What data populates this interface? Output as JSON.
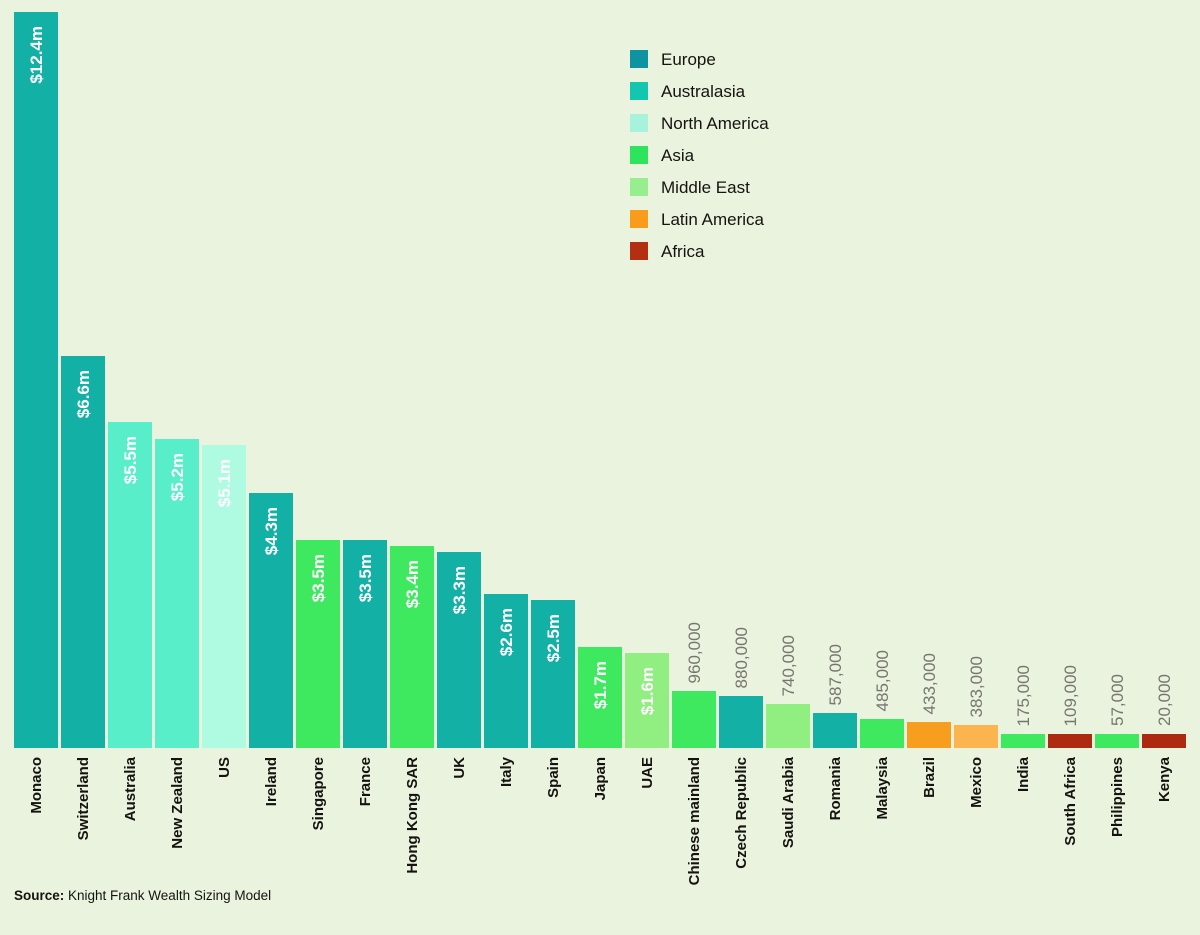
{
  "page": {
    "background": "#e9f3de"
  },
  "legend": {
    "position": "top-center",
    "items": [
      {
        "label": "Europe",
        "color": "#0d94a0"
      },
      {
        "label": "Australasia",
        "color": "#12c7ad"
      },
      {
        "label": "North America",
        "color": "#a6f2dd"
      },
      {
        "label": "Asia",
        "color": "#2ee45c"
      },
      {
        "label": "Middle East",
        "color": "#96ee8e"
      },
      {
        "label": "Latin America",
        "color": "#f99c1c"
      },
      {
        "label": "Africa",
        "color": "#b42e12"
      }
    ]
  },
  "source": {
    "prefix": "Source:",
    "text": " Knight Frank Wealth Sizing Model"
  },
  "chart_data": {
    "type": "bar",
    "title": "",
    "xlabel": "",
    "ylabel": "",
    "unit": "USD",
    "ylim": [
      0,
      12.4
    ],
    "grid": false,
    "axes_visible": false,
    "value_label_inside_color": "#ffffff",
    "value_label_above_color": "#76766e",
    "region_bar_colors": {
      "Europe": "#13b0a5",
      "Australasia": "#58eec9",
      "North America": "#aefbe1",
      "Asia": "#3ee95f",
      "Middle East": "#90ef80",
      "Latin America": "#f89e1e",
      "Africa": "#ab2a10"
    },
    "bar_color_overrides": {
      "Mexico": "#fbb44e"
    },
    "bars": [
      {
        "category": "Monaco",
        "region": "Europe",
        "value_millions": 12.4,
        "label": "$12.4m",
        "label_position": "inside"
      },
      {
        "category": "Switzerland",
        "region": "Europe",
        "value_millions": 6.6,
        "label": "$6.6m",
        "label_position": "inside"
      },
      {
        "category": "Australia",
        "region": "Australasia",
        "value_millions": 5.5,
        "label": "$5.5m",
        "label_position": "inside"
      },
      {
        "category": "New Zealand",
        "region": "Australasia",
        "value_millions": 5.2,
        "label": "$5.2m",
        "label_position": "inside"
      },
      {
        "category": "US",
        "region": "North America",
        "value_millions": 5.1,
        "label": "$5.1m",
        "label_position": "inside"
      },
      {
        "category": "Ireland",
        "region": "Europe",
        "value_millions": 4.3,
        "label": "$4.3m",
        "label_position": "inside"
      },
      {
        "category": "Singapore",
        "region": "Asia",
        "value_millions": 3.5,
        "label": "$3.5m",
        "label_position": "inside"
      },
      {
        "category": "France",
        "region": "Europe",
        "value_millions": 3.5,
        "label": "$3.5m",
        "label_position": "inside"
      },
      {
        "category": "Hong Kong SAR",
        "region": "Asia",
        "value_millions": 3.4,
        "label": "$3.4m",
        "label_position": "inside"
      },
      {
        "category": "UK",
        "region": "Europe",
        "value_millions": 3.3,
        "label": "$3.3m",
        "label_position": "inside"
      },
      {
        "category": "Italy",
        "region": "Europe",
        "value_millions": 2.6,
        "label": "$2.6m",
        "label_position": "inside"
      },
      {
        "category": "Spain",
        "region": "Europe",
        "value_millions": 2.5,
        "label": "$2.5m",
        "label_position": "inside"
      },
      {
        "category": "Japan",
        "region": "Asia",
        "value_millions": 1.7,
        "label": "$1.7m",
        "label_position": "inside"
      },
      {
        "category": "UAE",
        "region": "Middle East",
        "value_millions": 1.6,
        "label": "$1.6m",
        "label_position": "inside"
      },
      {
        "category": "Chinese mainland",
        "region": "Asia",
        "value_millions": 0.96,
        "label": "960,000",
        "label_position": "above"
      },
      {
        "category": "Czech Republic",
        "region": "Europe",
        "value_millions": 0.88,
        "label": "880,000",
        "label_position": "above"
      },
      {
        "category": "Saudi Arabia",
        "region": "Middle East",
        "value_millions": 0.74,
        "label": "740,000",
        "label_position": "above"
      },
      {
        "category": "Romania",
        "region": "Europe",
        "value_millions": 0.587,
        "label": "587,000",
        "label_position": "above"
      },
      {
        "category": "Malaysia",
        "region": "Asia",
        "value_millions": 0.485,
        "label": "485,000",
        "label_position": "above"
      },
      {
        "category": "Brazil",
        "region": "Latin America",
        "value_millions": 0.433,
        "label": "433,000",
        "label_position": "above"
      },
      {
        "category": "Mexico",
        "region": "Latin America",
        "value_millions": 0.383,
        "label": "383,000",
        "label_position": "above"
      },
      {
        "category": "India",
        "region": "Asia",
        "value_millions": 0.175,
        "label": "175,000",
        "label_position": "above"
      },
      {
        "category": "South Africa",
        "region": "Africa",
        "value_millions": 0.109,
        "label": "109,000",
        "label_position": "above"
      },
      {
        "category": "Philippines",
        "region": "Asia",
        "value_millions": 0.057,
        "label": "57,000",
        "label_position": "above"
      },
      {
        "category": "Kenya",
        "region": "Africa",
        "value_millions": 0.02,
        "label": "20,000",
        "label_position": "above"
      }
    ]
  }
}
